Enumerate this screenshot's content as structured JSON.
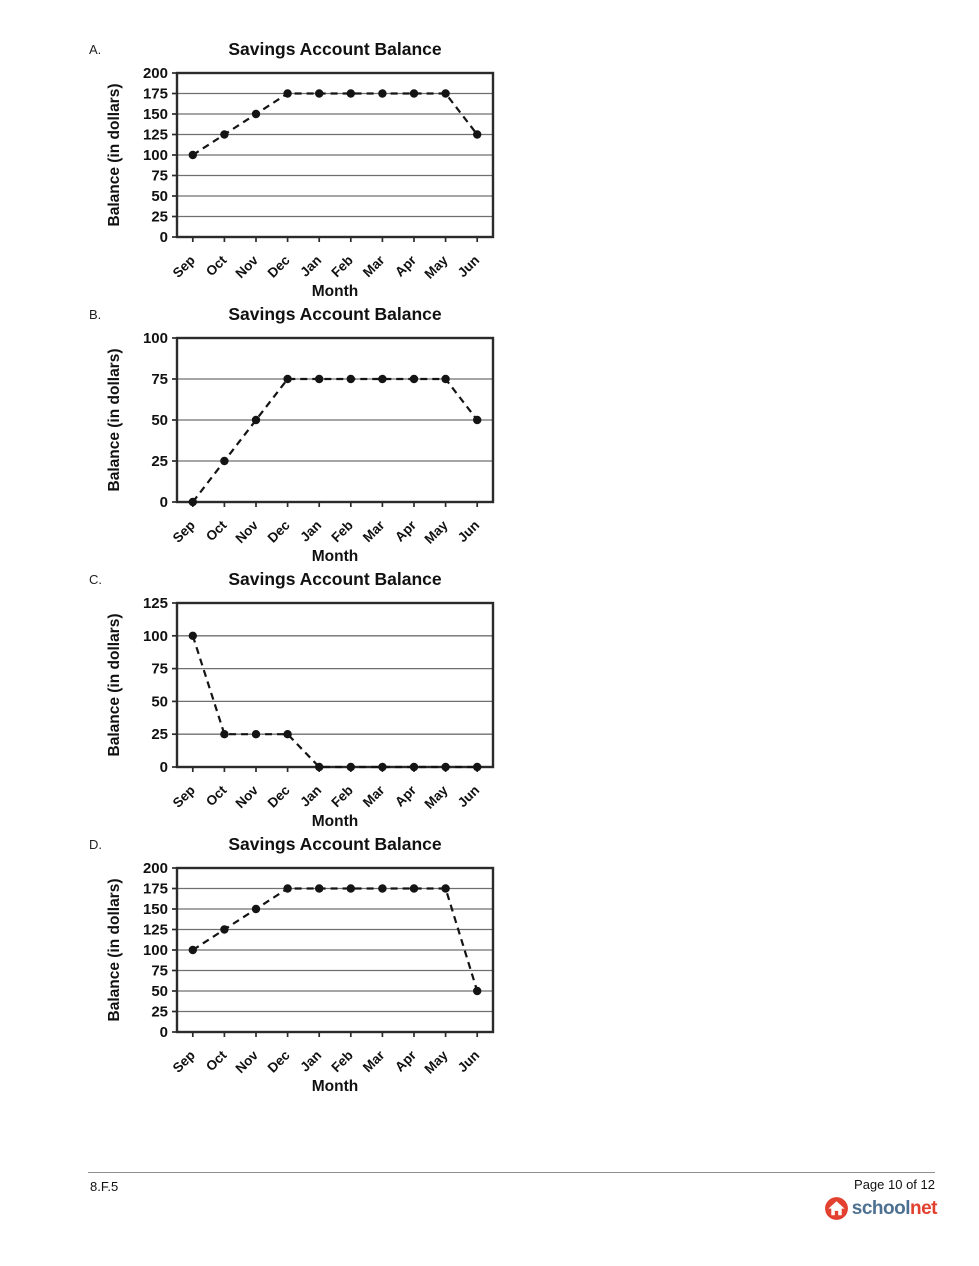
{
  "page": {
    "footer": {
      "standard_code": "8.F.5",
      "page_label": "Page 10 of 12",
      "logo": {
        "text_school": "school",
        "text_net": "net",
        "school_color": "#4e7191",
        "net_color": "#e2402e",
        "badge_color": "#e0392b",
        "house_icon": "home-icon"
      }
    }
  },
  "chart_style": {
    "line_color": "#141414",
    "marker": "circle",
    "line_style": "dashed",
    "grid_color": "#6f6f6f",
    "frame_color": "#2b2b2b",
    "text_color": "#111111",
    "grid": "on",
    "legend": "none"
  },
  "chart_data": [
    {
      "type": "line",
      "option_label": "A.",
      "title": "Savings Account Balance",
      "xlabel": "Month",
      "ylabel": "Balance (in dollars)",
      "categories": [
        "Sep",
        "Oct",
        "Nov",
        "Dec",
        "Jan",
        "Feb",
        "Mar",
        "Apr",
        "May",
        "Jun"
      ],
      "values": [
        100,
        125,
        150,
        175,
        175,
        175,
        175,
        175,
        175,
        125
      ],
      "ylim": [
        0,
        200
      ],
      "ytick_step": 25,
      "yticks": [
        0,
        25,
        50,
        75,
        100,
        125,
        150,
        175,
        200
      ]
    },
    {
      "type": "line",
      "option_label": "B.",
      "title": "Savings Account Balance",
      "xlabel": "Month",
      "ylabel": "Balance (in dollars)",
      "categories": [
        "Sep",
        "Oct",
        "Nov",
        "Dec",
        "Jan",
        "Feb",
        "Mar",
        "Apr",
        "May",
        "Jun"
      ],
      "values": [
        0,
        25,
        50,
        75,
        75,
        75,
        75,
        75,
        75,
        50
      ],
      "ylim": [
        0,
        100
      ],
      "ytick_step": 25,
      "yticks": [
        0,
        25,
        50,
        75,
        100
      ]
    },
    {
      "type": "line",
      "option_label": "C.",
      "title": "Savings Account Balance",
      "xlabel": "Month",
      "ylabel": "Balance (in dollars)",
      "categories": [
        "Sep",
        "Oct",
        "Nov",
        "Dec",
        "Jan",
        "Feb",
        "Mar",
        "Apr",
        "May",
        "Jun"
      ],
      "values": [
        100,
        25,
        25,
        25,
        0,
        0,
        0,
        0,
        0,
        0
      ],
      "ylim": [
        0,
        125
      ],
      "ytick_step": 25,
      "yticks": [
        0,
        25,
        50,
        75,
        100,
        125
      ]
    },
    {
      "type": "line",
      "option_label": "D.",
      "title": "Savings Account Balance",
      "xlabel": "Month",
      "ylabel": "Balance (in dollars)",
      "categories": [
        "Sep",
        "Oct",
        "Nov",
        "Dec",
        "Jan",
        "Feb",
        "Mar",
        "Apr",
        "May",
        "Jun"
      ],
      "values": [
        100,
        125,
        150,
        175,
        175,
        175,
        175,
        175,
        175,
        50
      ],
      "ylim": [
        0,
        200
      ],
      "ytick_step": 25,
      "yticks": [
        0,
        25,
        50,
        75,
        100,
        125,
        150,
        175,
        200
      ]
    }
  ]
}
